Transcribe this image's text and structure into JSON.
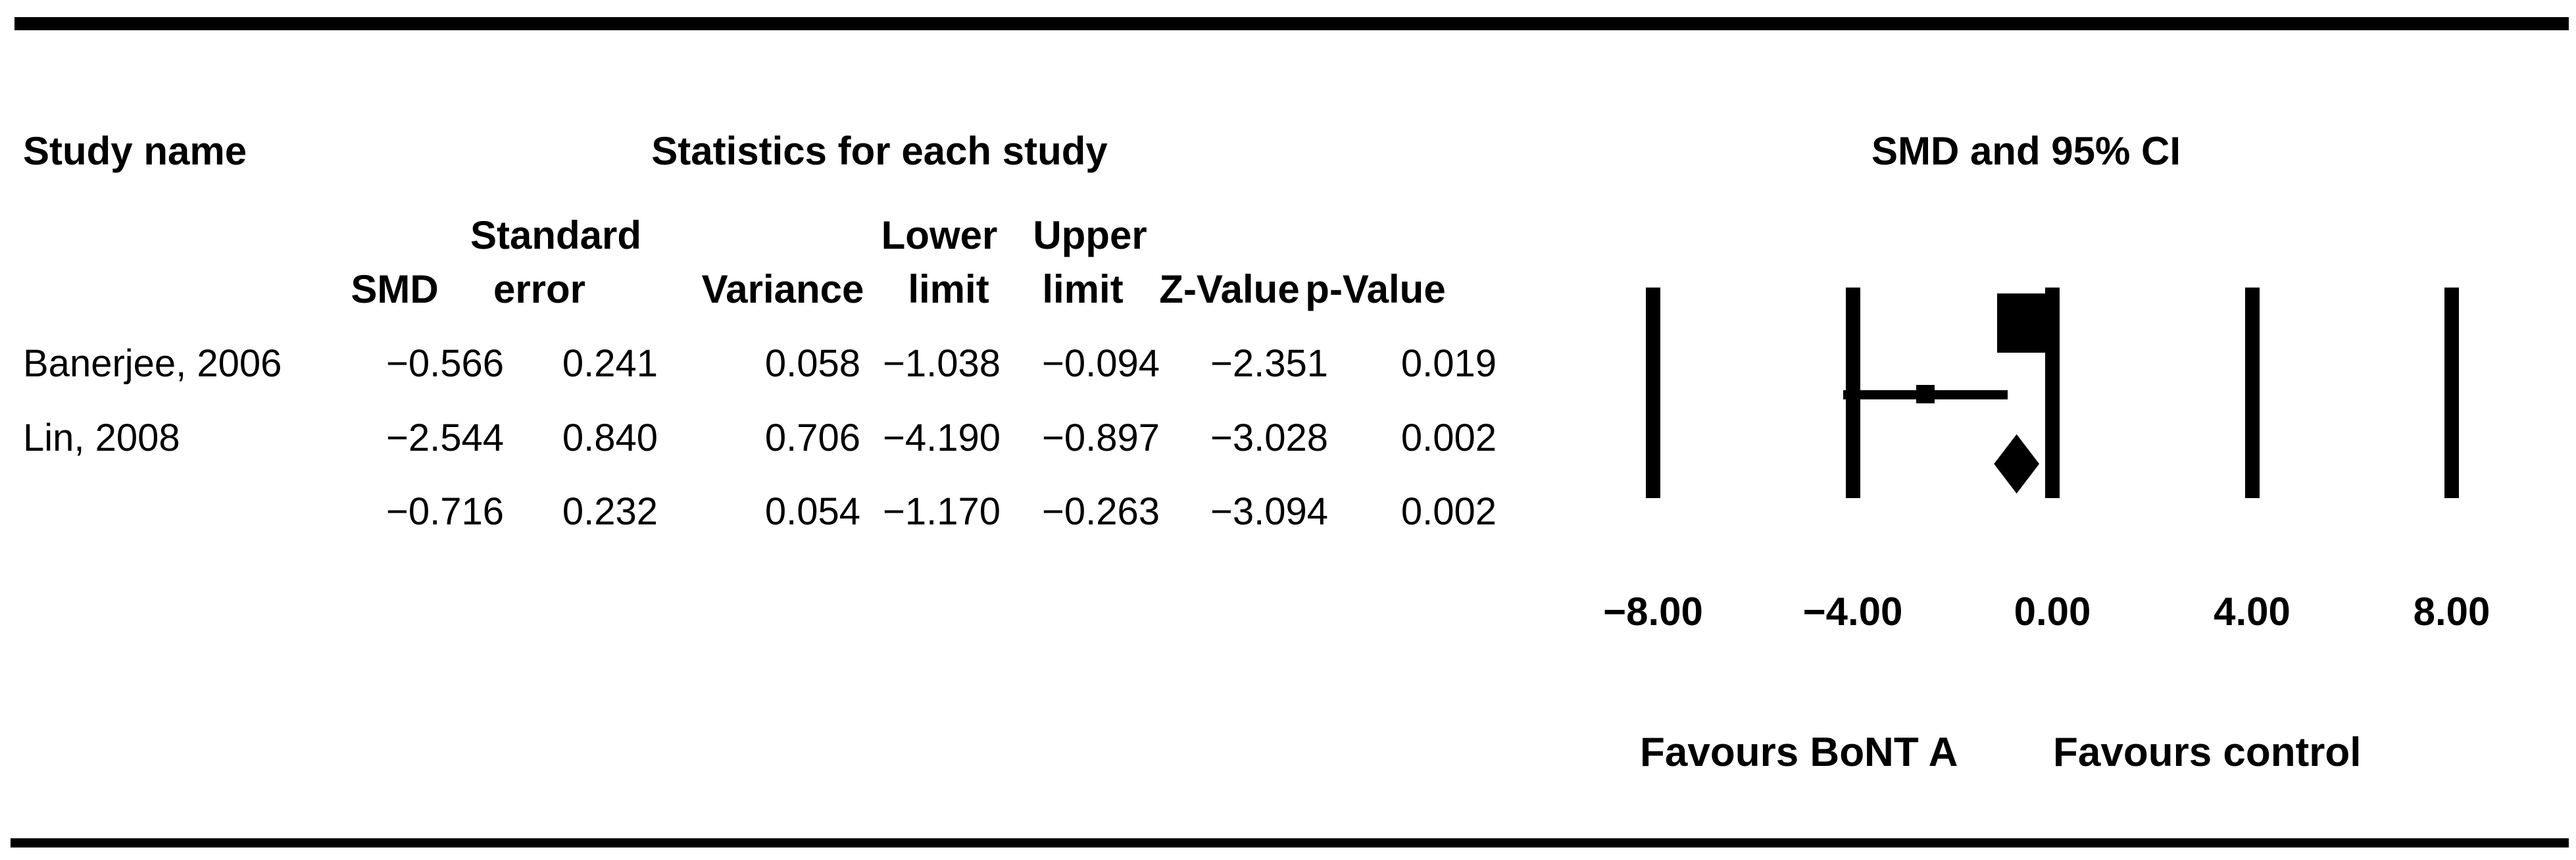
{
  "figure": {
    "titles": {
      "study": "Study name",
      "stats": "Statistics for each study",
      "plot": "SMD and 95% CI"
    },
    "column_headers": {
      "smd": "SMD",
      "standard": "Standard",
      "error": "error",
      "variance": "Variance",
      "lower": "Lower",
      "lower_limit": "limit",
      "upper": "Upper",
      "upper_limit": "limit",
      "z_value": "Z-Value",
      "p_value": "p-Value"
    },
    "rows": [
      {
        "study": "Banerjee, 2006",
        "smd": "−0.566",
        "se": "0.241",
        "variance": "0.058",
        "lower": "−1.038",
        "upper": "−0.094",
        "z": "−2.351",
        "p": "0.019"
      },
      {
        "study": "Lin, 2008",
        "smd": "−2.544",
        "se": "0.840",
        "variance": "0.706",
        "lower": "−4.190",
        "upper": "−0.897",
        "z": "−3.028",
        "p": "0.002"
      },
      {
        "study": "",
        "smd": "−0.716",
        "se": "0.232",
        "variance": "0.054",
        "lower": "−1.170",
        "upper": "−0.263",
        "z": "−3.094",
        "p": "0.002"
      }
    ],
    "axis_tick_labels": [
      "−8.00",
      "−4.00",
      "0.00",
      "4.00",
      "8.00"
    ],
    "favours_left": "Favours BoNT A",
    "favours_right": "Favours control"
  },
  "chart_data": {
    "type": "forest",
    "title": "SMD and 95% CI",
    "effect_measure": "SMD",
    "axis_values": [
      -8,
      -4,
      0,
      4,
      8
    ],
    "axis_tick_labels": [
      "−8.00",
      "−4.00",
      "0.00",
      "4.00",
      "8.00"
    ],
    "xlim": [
      -8,
      8
    ],
    "favours_left": "Favours BoNT A",
    "favours_right": "Favours control",
    "studies": [
      {
        "name": "Banerjee, 2006",
        "smd": -0.566,
        "standard_error": 0.241,
        "variance": 0.058,
        "lower": -1.038,
        "upper": -0.094,
        "z": -2.351,
        "p": 0.019,
        "marker": "square-large"
      },
      {
        "name": "Lin, 2008",
        "smd": -2.544,
        "standard_error": 0.84,
        "variance": 0.706,
        "lower": -4.19,
        "upper": -0.897,
        "z": -3.028,
        "p": 0.002,
        "marker": "square-small"
      }
    ],
    "summary": {
      "smd": -0.716,
      "standard_error": 0.232,
      "variance": 0.054,
      "lower": -1.17,
      "upper": -0.263,
      "z": -3.094,
      "p": 0.002,
      "marker": "diamond"
    }
  }
}
